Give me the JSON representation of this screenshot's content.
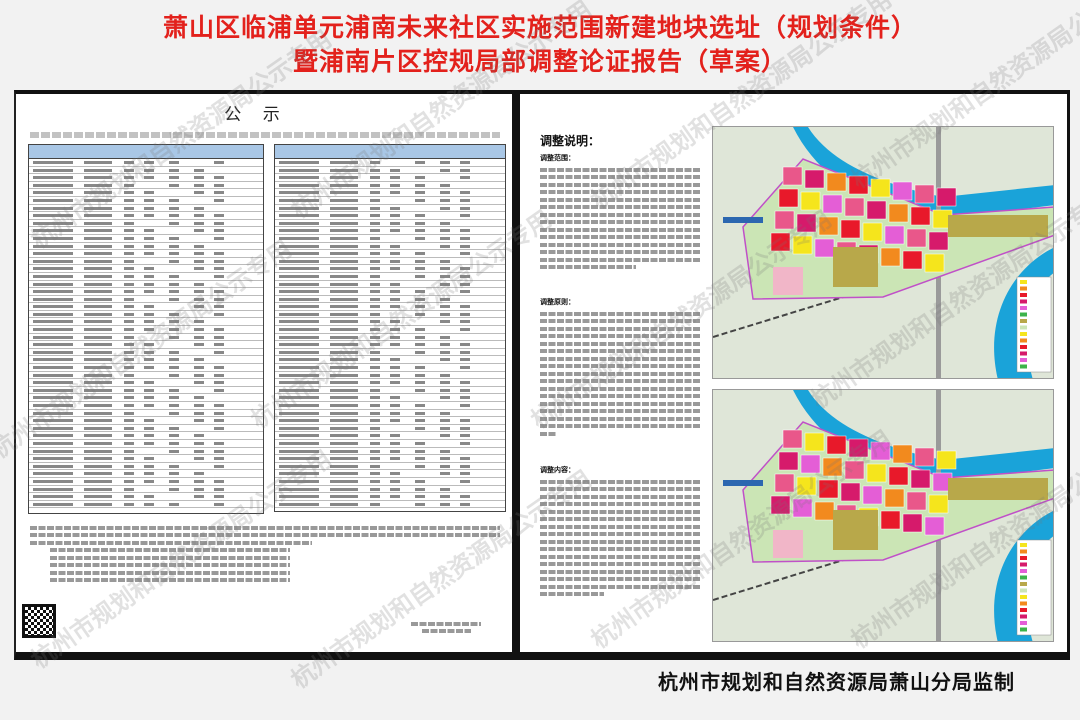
{
  "title": {
    "line1": "萧山区临浦单元浦南未来社区实施范围新建地块选址（规划条件）",
    "line2": "暨浦南片区控规局部调整论证报告（草案）"
  },
  "left_panel": {
    "heading": "公 示"
  },
  "right_panel": {
    "heading": "调整说明：",
    "sections": [
      {
        "label": "调整范围："
      },
      {
        "label": "调整原则："
      },
      {
        "label": "调整内容："
      }
    ]
  },
  "maps": [
    {
      "name": "current-plan-map"
    },
    {
      "name": "adjusted-plan-map"
    }
  ],
  "footer": "杭州市规划和自然资源局萧山分局监制",
  "watermark": "杭州市规划和自然资源局公示专用",
  "colors": {
    "title": "#e3211c",
    "table_header": "#a9c7e6",
    "river": "#1aa3d9"
  }
}
